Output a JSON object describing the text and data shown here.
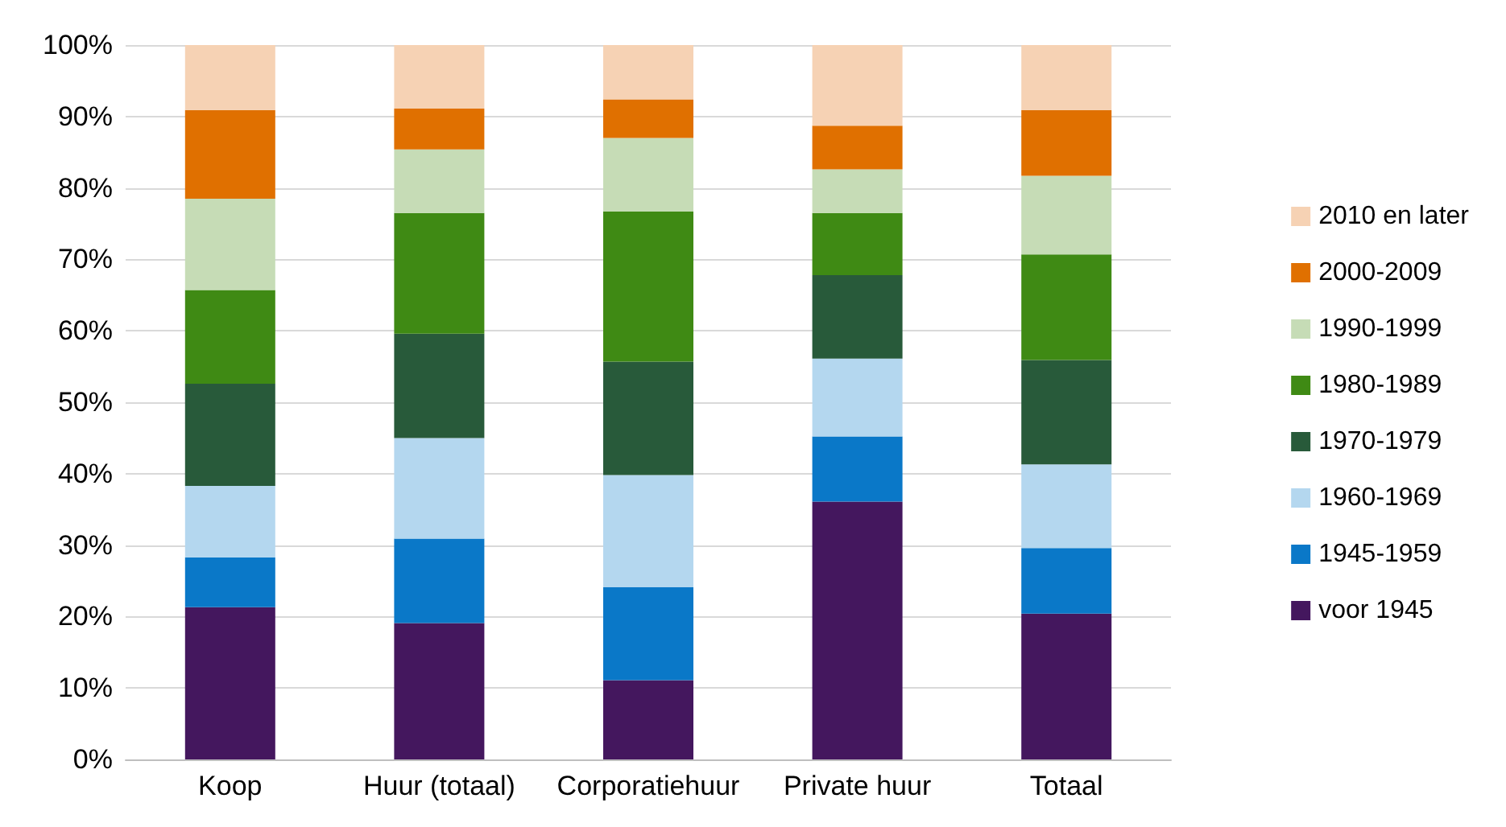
{
  "chart_data": {
    "type": "bar",
    "stacked": true,
    "categories": [
      "Koop",
      "Huur (totaal)",
      "Corporatiehuur",
      "Private huur",
      "Totaal"
    ],
    "series": [
      {
        "name": "voor 1945",
        "color": "#44175e",
        "values": [
          21.3,
          19.1,
          11.1,
          36.1,
          20.4
        ]
      },
      {
        "name": "1945-1959",
        "color": "#0a78c8",
        "values": [
          7.0,
          11.8,
          13.0,
          9.1,
          9.2
        ]
      },
      {
        "name": "1960-1969",
        "color": "#b4d7ef",
        "values": [
          10.0,
          14.1,
          15.7,
          10.9,
          11.7
        ]
      },
      {
        "name": "1970-1979",
        "color": "#285a3a",
        "values": [
          14.3,
          14.6,
          15.9,
          11.7,
          14.6
        ]
      },
      {
        "name": "1980-1989",
        "color": "#3f8a14",
        "values": [
          13.1,
          16.9,
          21.0,
          8.7,
          14.8
        ]
      },
      {
        "name": "1990-1999",
        "color": "#c6dcb6",
        "values": [
          12.8,
          8.9,
          10.3,
          6.1,
          11.0
        ]
      },
      {
        "name": "2000-2009",
        "color": "#e07000",
        "values": [
          12.4,
          5.7,
          5.4,
          6.1,
          9.2
        ]
      },
      {
        "name": "2010 en later",
        "color": "#f6d2b4",
        "values": [
          9.1,
          8.9,
          7.6,
          11.3,
          9.1
        ]
      }
    ],
    "ylim": [
      0,
      100
    ],
    "yticks": [
      {
        "value": 0,
        "label": "0%"
      },
      {
        "value": 10,
        "label": "10%"
      },
      {
        "value": 20,
        "label": "20%"
      },
      {
        "value": 30,
        "label": "30%"
      },
      {
        "value": 40,
        "label": "40%"
      },
      {
        "value": 50,
        "label": "50%"
      },
      {
        "value": 60,
        "label": "60%"
      },
      {
        "value": 70,
        "label": "70%"
      },
      {
        "value": 80,
        "label": "80%"
      },
      {
        "value": 90,
        "label": "90%"
      },
      {
        "value": 100,
        "label": "100%"
      }
    ],
    "grid": "y",
    "legend": "right"
  }
}
